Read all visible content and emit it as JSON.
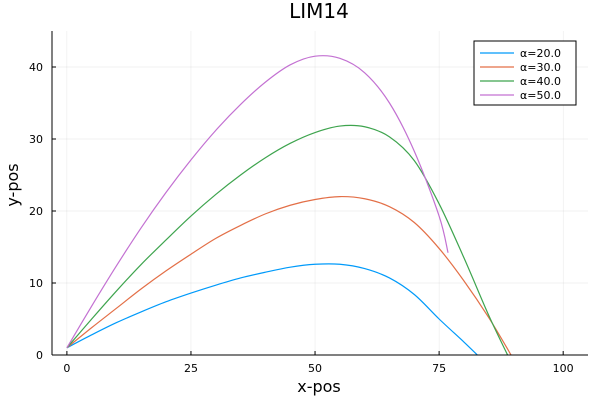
{
  "chart_data": {
    "type": "line",
    "title": "LIM14",
    "xlabel": "x-pos",
    "ylabel": "y-pos",
    "xlim": [
      -3,
      105
    ],
    "ylim": [
      0,
      45
    ],
    "xticks": [
      0,
      25,
      50,
      75,
      100
    ],
    "yticks": [
      0,
      10,
      20,
      30,
      40
    ],
    "grid": true,
    "legend_position": "top-right",
    "series": [
      {
        "name": "α=20.0",
        "color": "#009AFA",
        "x": [
          0,
          5,
          10,
          15,
          20,
          25,
          30,
          35,
          40,
          45,
          50,
          55,
          60,
          65,
          70,
          75,
          80,
          82.7
        ],
        "y": [
          1.0,
          2.8,
          4.5,
          6.0,
          7.4,
          8.6,
          9.7,
          10.7,
          11.5,
          12.2,
          12.6,
          12.6,
          12.0,
          10.7,
          8.4,
          5.0,
          1.8,
          0
        ]
      },
      {
        "name": "α=30.0",
        "color": "#E36F47",
        "x": [
          0,
          5,
          10,
          15,
          20,
          25,
          30,
          35,
          40,
          45,
          50,
          55,
          60,
          65,
          70,
          75,
          80,
          85,
          89.5
        ],
        "y": [
          1.0,
          3.8,
          6.5,
          9.2,
          11.7,
          14.0,
          16.2,
          18.0,
          19.6,
          20.8,
          21.6,
          22.0,
          21.7,
          20.6,
          18.4,
          14.8,
          10.3,
          5.2,
          0
        ]
      },
      {
        "name": "α=40.0",
        "color": "#3EA44E",
        "x": [
          0,
          5,
          10,
          15,
          20,
          25,
          30,
          35,
          40,
          45,
          50,
          55,
          60,
          65,
          70,
          75,
          80,
          85,
          88.8
        ],
        "y": [
          1.0,
          5.0,
          8.9,
          12.6,
          16.0,
          19.3,
          22.3,
          25.0,
          27.4,
          29.4,
          30.9,
          31.8,
          31.7,
          30.3,
          27.0,
          21.0,
          13.5,
          5.5,
          0
        ]
      },
      {
        "name": "α=50.0",
        "color": "#C371D2",
        "x": [
          0,
          5,
          10,
          15,
          20,
          25,
          30,
          35,
          40,
          45,
          50,
          55,
          60,
          65,
          70,
          75,
          76.8
        ],
        "y": [
          1.0,
          6.8,
          12.4,
          17.7,
          22.6,
          27.1,
          31.2,
          34.8,
          37.9,
          40.3,
          41.5,
          41.2,
          39.2,
          35.0,
          28.3,
          19.3,
          14.2
        ]
      }
    ]
  }
}
